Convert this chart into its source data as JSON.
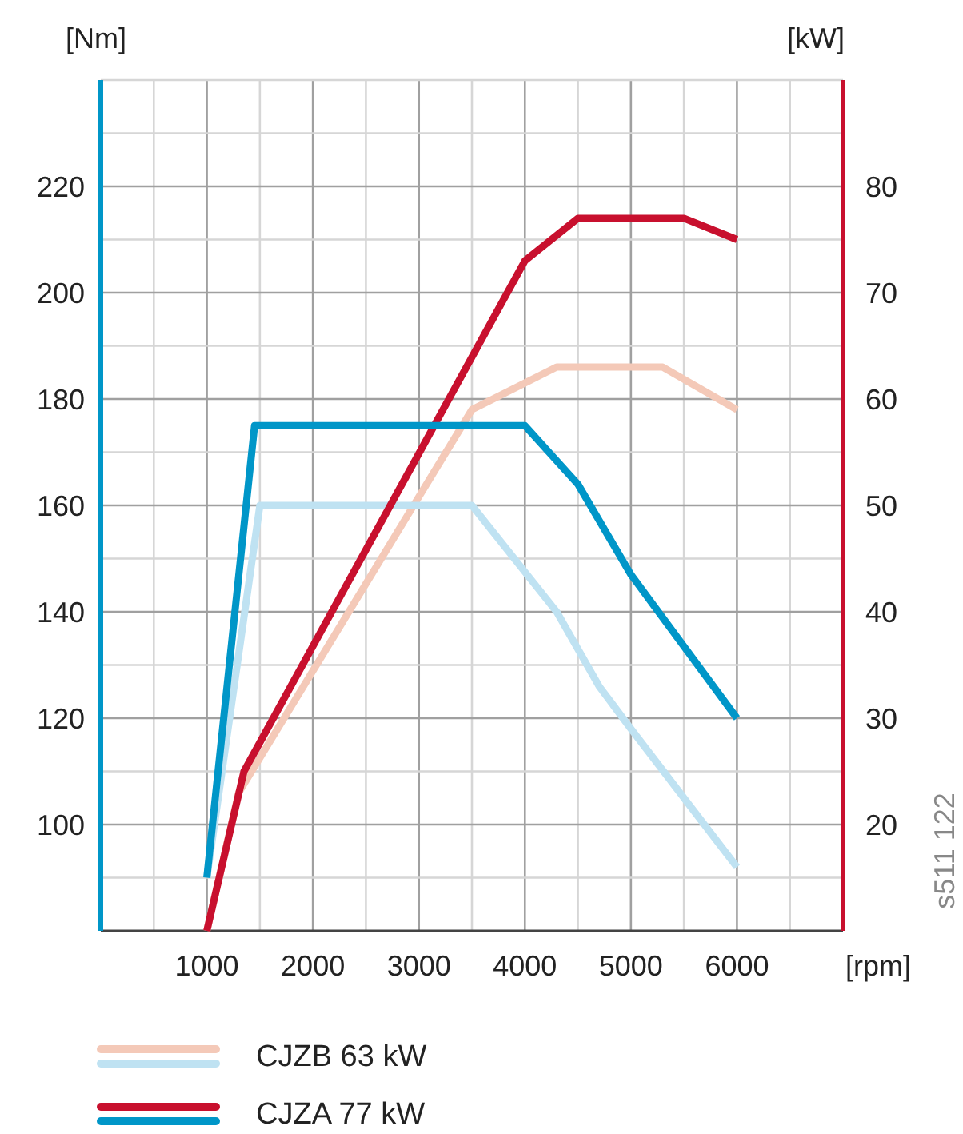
{
  "chart_data": {
    "type": "line",
    "xlabel": "[rpm]",
    "ylabel": "[Nm]",
    "y2label": "[kW]",
    "xlim": [
      0,
      7000
    ],
    "xticks": [
      1000,
      2000,
      3000,
      4000,
      5000,
      6000
    ],
    "ylim": [
      80,
      240
    ],
    "yticks": [
      100,
      120,
      140,
      160,
      180,
      200,
      220
    ],
    "y2lim": [
      10,
      90
    ],
    "y2ticks": [
      20,
      30,
      40,
      50,
      60,
      70,
      80
    ],
    "grid": true,
    "legend": "bottom",
    "marker": "none",
    "line_style": "solid",
    "annotations": [
      "s511 122"
    ],
    "series": [
      {
        "name": "CJZB 63 kW",
        "color": "#f4c9b8",
        "axis": "y2",
        "x": [
          1000,
          1300,
          3500,
          4300,
          5300,
          6000
        ],
        "values": [
          10,
          23,
          59,
          63,
          63,
          59
        ]
      },
      {
        "color": "#bfe2f2",
        "x": [
          1000,
          1500,
          3500,
          4300,
          4700,
          5000,
          6000
        ],
        "values": [
          90,
          160,
          160,
          140,
          126,
          118,
          92
        ]
      },
      {
        "name": "CJZA 77 kW",
        "color": "#c8102e",
        "axis": "y2",
        "x": [
          1000,
          1350,
          4000,
          4500,
          5500,
          6000
        ],
        "values": [
          10,
          25,
          73,
          77,
          77,
          75
        ]
      },
      {
        "color": "#0096c8",
        "x": [
          1000,
          1450,
          4000,
          4500,
          5000,
          6000
        ],
        "values": [
          90,
          175,
          175,
          164,
          147,
          120
        ]
      }
    ]
  }
}
